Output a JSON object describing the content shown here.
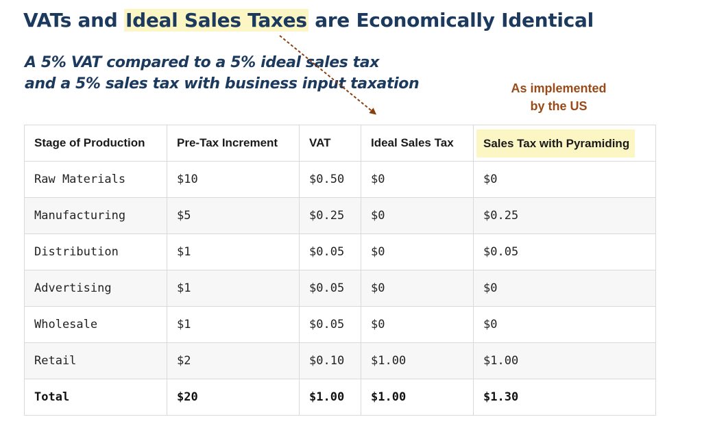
{
  "title": {
    "part1": "VATs and ",
    "highlight": "Ideal Sales Taxes",
    "part2": " are Economically Identical",
    "highlight_color": "#fbf6c4",
    "color": "#1c3a5e"
  },
  "subtitle": {
    "line1": "A 5% VAT compared to a 5% ideal sales tax",
    "line2": "and a 5% sales tax with business input taxation"
  },
  "annotation": {
    "line1": "As implemented",
    "line2": "by the US",
    "color": "#9a4a16"
  },
  "table": {
    "headers": [
      "Stage of Production",
      "Pre-Tax Increment",
      "VAT",
      "Ideal Sales Tax",
      "Sales Tax with Pyramiding"
    ],
    "rows": [
      [
        "Raw Materials",
        "$10",
        "$0.50",
        "$0",
        "$0"
      ],
      [
        "Manufacturing",
        "$5",
        "$0.25",
        "$0",
        "$0.25"
      ],
      [
        "Distribution",
        "$1",
        "$0.05",
        "$0",
        "$0.05"
      ],
      [
        "Advertising",
        "$1",
        "$0.05",
        "$0",
        "$0"
      ],
      [
        "Wholesale",
        "$1",
        "$0.05",
        "$0",
        "$0"
      ],
      [
        "Retail",
        "$2",
        "$0.10",
        "$1.00",
        "$1.00"
      ]
    ],
    "total": [
      "Total",
      "$20",
      "$1.00",
      "$1.00",
      "$1.30"
    ]
  }
}
